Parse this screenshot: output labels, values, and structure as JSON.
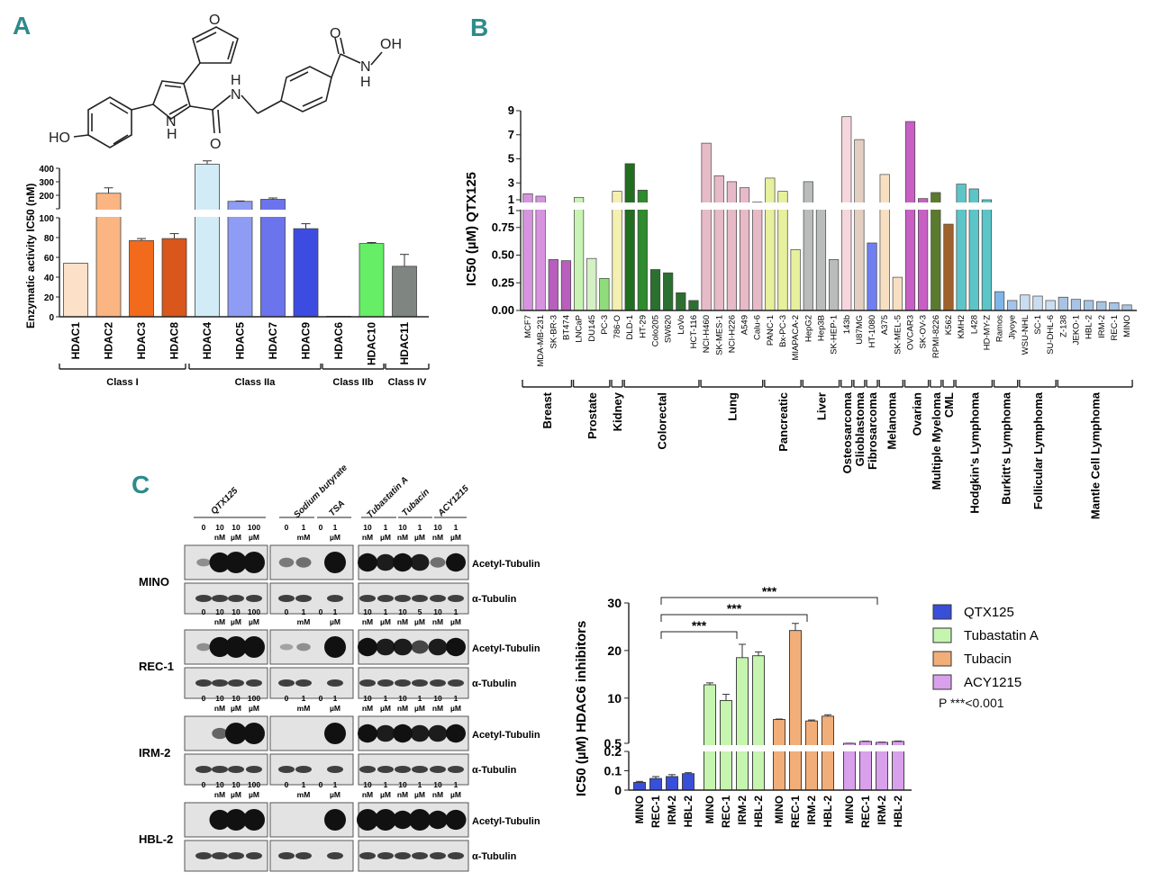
{
  "panels": {
    "A": {
      "letter": "A",
      "molecule": {
        "labels": [
          "HO",
          "H",
          "N",
          "O",
          "H",
          "N",
          "O",
          "N",
          "OH",
          "H",
          "O"
        ]
      },
      "y_axis_label": "Enzymatic activity  IC50 (nM)",
      "upper_ticks": [
        "400",
        "300",
        "200",
        "100"
      ],
      "lower_ticks": [
        "100",
        "80",
        "60",
        "40",
        "20",
        "0"
      ],
      "class_labels": [
        "Class I",
        "Class IIa",
        "Class IIb",
        "Class IV"
      ]
    },
    "B": {
      "letter": "B",
      "y_axis_label": "IC50 (µM)  QTX125",
      "upper_ticks": [
        "9",
        "7",
        "5",
        "3",
        "1"
      ],
      "lower_ticks": [
        "1",
        "0.75",
        "0.50",
        "0.25",
        "0.00"
      ],
      "groups": [
        "Breast",
        "Prostate",
        "Kidney",
        "Colorectal",
        "Lung",
        "Pancreatic",
        "Liver",
        "Osteosarcoma",
        "Glioblastoma",
        "Fibrosarcoma",
        "Melanoma",
        "Ovarian",
        "Multiple Myeloma",
        "CML",
        "Hodgkin's Lymphoma",
        "Burkitt's Lymphoma",
        "Follicular Lymphoma",
        "Mantle Cell Lymphoma"
      ]
    },
    "C": {
      "letter": "C",
      "treatment_headers": [
        "QTX125",
        "Sodium butyrate",
        "TSA",
        "Tubastatin A",
        "Tubacin",
        "ACY1215"
      ],
      "cell_lines": [
        "MINO",
        "REC-1",
        "IRM-2",
        "HBL-2"
      ],
      "row_labels": [
        "Acetyl-Tubulin",
        "α-Tubulin"
      ],
      "dose_rows": [
        {
          "numbers": [
            "0",
            "10",
            "10",
            "100",
            "0",
            "1",
            "0",
            "1",
            "10",
            "1",
            "10",
            "1",
            "10",
            "1"
          ],
          "units": [
            "nM",
            "µM",
            "µM",
            "mM",
            "µM",
            "nM",
            "µM",
            "nM",
            "µM",
            "nM",
            "µM"
          ]
        },
        {
          "numbers": [
            "0",
            "10",
            "10",
            "100",
            "0",
            "1",
            "0",
            "1",
            "10",
            "1",
            "10",
            "5",
            "10",
            "1"
          ],
          "units": [
            "nM",
            "µM",
            "µM",
            "mM",
            "µM",
            "nM",
            "µM",
            "nM",
            "µM",
            "nM",
            "µM"
          ]
        },
        {
          "numbers": [
            "0",
            "10",
            "10",
            "100",
            "0",
            "1",
            "0",
            "1",
            "10",
            "1",
            "10",
            "1",
            "10",
            "1"
          ],
          "units": [
            "nM",
            "µM",
            "µM",
            "mM",
            "µM",
            "nM",
            "µM",
            "nM",
            "µM",
            "nM",
            "µM"
          ]
        },
        {
          "numbers": [
            "0",
            "10",
            "10",
            "100",
            "0",
            "1",
            "0",
            "1",
            "10",
            "1",
            "10",
            "1",
            "10",
            "1"
          ],
          "units": [
            "nM",
            "µM",
            "µM",
            "mM",
            "µM",
            "nM",
            "µM",
            "nM",
            "µM",
            "nM",
            "µM"
          ]
        }
      ]
    },
    "D": {
      "y_axis_label": "IC50 (µM) HDAC6 inhibitors",
      "upper_ticks": [
        "30",
        "20",
        "10",
        "0.5"
      ],
      "lower_ticks": [
        "0.2",
        "0.1",
        "0"
      ],
      "significance": [
        "***",
        "***",
        "***"
      ],
      "p_note": "P ***<0.001"
    }
  },
  "chart_data": [
    {
      "id": "A",
      "type": "bar",
      "title": "",
      "xlabel": "",
      "ylabel": "Enzymatic activity  IC50 (nM)",
      "y_axis_break": {
        "lower_range": [
          0,
          100
        ],
        "upper_range": [
          100,
          400
        ]
      },
      "categories": [
        "HDAC1",
        "HDAC2",
        "HDAC3",
        "HDAC8",
        "HDAC4",
        "HDAC5",
        "HDAC7",
        "HDAC9",
        "HDAC6",
        "HDAC10",
        "HDAC11"
      ],
      "values": [
        54,
        215,
        77,
        79,
        430,
        155,
        170,
        89,
        0.5,
        74,
        51
      ],
      "errors": [
        0,
        40,
        2,
        5,
        25,
        3,
        10,
        5,
        0,
        1,
        12
      ],
      "colors": [
        "#fde0c8",
        "#fbb582",
        "#f26a1b",
        "#d9561d",
        "#d2ecf7",
        "#8e9cf3",
        "#6b74ec",
        "#3d4ce0",
        "#ffffff",
        "#66ee66",
        "#7f8682"
      ],
      "groups": [
        {
          "label": "Class I",
          "members": [
            "HDAC1",
            "HDAC2",
            "HDAC3",
            "HDAC8"
          ]
        },
        {
          "label": "Class IIa",
          "members": [
            "HDAC4",
            "HDAC5",
            "HDAC7",
            "HDAC9"
          ]
        },
        {
          "label": "Class IIb",
          "members": [
            "HDAC6",
            "HDAC10"
          ]
        },
        {
          "label": "Class IV",
          "members": [
            "HDAC11"
          ]
        }
      ]
    },
    {
      "id": "B",
      "type": "bar",
      "title": "",
      "ylabel": "IC50 (µM)  QTX125",
      "y_axis_break": {
        "lower_range": [
          0,
          1
        ],
        "upper_range": [
          1,
          9
        ]
      },
      "categories": [
        "MCF7",
        "MDA-MB-231",
        "SK-BR-3",
        "BT474",
        "LNCaP",
        "DU145",
        "PC-3",
        "786-O",
        "DLD-1",
        "HT-29",
        "Colo205",
        "SW620",
        "LoVo",
        "HCT-116",
        "NCI-H460",
        "SK-MES-1",
        "NCI-H226",
        "A549",
        "Calu-6",
        "PANC-1",
        "Bx-PC-3",
        "MIAPACA-2",
        "HepG2",
        "Hep3B",
        "SK-HEP-1",
        "143b",
        "U87MG",
        "HT-1080",
        "A375",
        "SK-MEL-5",
        "OVCAR3",
        "SK-OV-3",
        "RPMI-8226",
        "K562",
        "KMH2",
        "L428",
        "HD-MY-Z",
        "Ramos",
        "Jiyoye",
        "WSU-NHL",
        "SC-1",
        "SU-DHL-6",
        "Z-138",
        "JEKO-1",
        "HBL-2",
        "IRM-2",
        "REC-1",
        "MINO"
      ],
      "values": [
        2.1,
        1.9,
        0.46,
        0.45,
        1.8,
        0.47,
        0.29,
        2.3,
        4.6,
        2.4,
        0.37,
        0.34,
        0.16,
        0.09,
        6.3,
        3.6,
        3.1,
        2.6,
        1.4,
        3.4,
        2.3,
        0.55,
        3.1,
        0.95,
        0.46,
        8.5,
        6.6,
        0.61,
        3.7,
        0.3,
        8.1,
        1.7,
        2.2,
        0.78,
        2.9,
        2.5,
        1.0,
        0.17,
        0.09,
        0.14,
        0.13,
        0.09,
        0.12,
        0.1,
        0.09,
        0.08,
        0.07,
        0.05
      ],
      "colors": [
        "#d793e0",
        "#d793e0",
        "#b85fbd",
        "#b85fbd",
        "#c9f2b5",
        "#d5f0c4",
        "#8fdc7a",
        "#f4f0b0",
        "#1f6f1f",
        "#2e8b2e",
        "#2b7030",
        "#2b7030",
        "#2b7030",
        "#2b7030",
        "#e7bac8",
        "#e7bac8",
        "#e7bac8",
        "#e7bac8",
        "#e7bac8",
        "#e7f09c",
        "#e7f09c",
        "#e7f09c",
        "#b9bcbb",
        "#b9bcbb",
        "#b9bcbb",
        "#f6d6dd",
        "#e3cfc2",
        "#6f7ef0",
        "#f7e0c2",
        "#f7e0c2",
        "#c85fc5",
        "#c85fc5",
        "#5a7a2e",
        "#a0622b",
        "#5cc5c8",
        "#5cc5c8",
        "#5cc5c8",
        "#7fb6e8",
        "#a6c4e8",
        "#c9dcf0",
        "#c9dcf0",
        "#c9dcf0",
        "#a9c3e3",
        "#a9c3e3",
        "#a9c3e3",
        "#a9c3e3",
        "#a9c3e3",
        "#a9c3e3"
      ],
      "groups": [
        {
          "label": "Breast",
          "from": 0,
          "to": 3
        },
        {
          "label": "Prostate",
          "from": 4,
          "to": 6
        },
        {
          "label": "Kidney",
          "from": 7,
          "to": 7
        },
        {
          "label": "Colorectal",
          "from": 8,
          "to": 13
        },
        {
          "label": "Lung",
          "from": 14,
          "to": 18
        },
        {
          "label": "Pancreatic",
          "from": 19,
          "to": 21
        },
        {
          "label": "Liver",
          "from": 22,
          "to": 24
        },
        {
          "label": "Osteosarcoma",
          "from": 25,
          "to": 25
        },
        {
          "label": "Glioblastoma",
          "from": 26,
          "to": 26
        },
        {
          "label": "Fibrosarcoma",
          "from": 27,
          "to": 27
        },
        {
          "label": "Melanoma",
          "from": 28,
          "to": 29
        },
        {
          "label": "Ovarian",
          "from": 30,
          "to": 31
        },
        {
          "label": "Multiple Myeloma",
          "from": 32,
          "to": 32
        },
        {
          "label": "CML",
          "from": 33,
          "to": 33
        },
        {
          "label": "Hodgkin's Lymphoma",
          "from": 34,
          "to": 36
        },
        {
          "label": "Burkitt's Lymphoma",
          "from": 37,
          "to": 38
        },
        {
          "label": "Follicular Lymphoma",
          "from": 39,
          "to": 41
        },
        {
          "label": "Mantle Cell Lymphoma",
          "from": 42,
          "to": 47
        }
      ]
    },
    {
      "id": "D",
      "type": "bar",
      "title": "",
      "ylabel": "IC50 (µM) HDAC6 inhibitors",
      "y_axis_break": {
        "lower_range": [
          0,
          0.2
        ],
        "upper_range": [
          0.5,
          30
        ]
      },
      "categories": [
        "MINO",
        "REC-1",
        "IRM-2",
        "HBL-2"
      ],
      "series": [
        {
          "name": "QTX125",
          "color": "#3a4fd8",
          "values": [
            0.04,
            0.06,
            0.07,
            0.085
          ],
          "errors": [
            0.005,
            0.01,
            0.01,
            0.005
          ]
        },
        {
          "name": "Tubastatin A",
          "color": "#c6f5b0",
          "values": [
            12.8,
            9.5,
            18.5,
            18.9
          ],
          "errors": [
            0.4,
            1.3,
            2.8,
            0.8
          ]
        },
        {
          "name": "Tubacin",
          "color": "#f2ae78",
          "values": [
            5.5,
            24.2,
            5.2,
            6.2
          ],
          "errors": [
            0.1,
            1.5,
            0.2,
            0.3
          ]
        },
        {
          "name": "ACY1215",
          "color": "#d9a0ec",
          "values": [
            0.5,
            0.9,
            0.7,
            0.9
          ],
          "errors": [
            0.02,
            0.05,
            0.05,
            0.08
          ]
        }
      ],
      "comparisons": [
        {
          "from": "QTX125 REC-1",
          "to": "Tubastatin A IRM-2",
          "label": "***"
        },
        {
          "from": "QTX125 REC-1",
          "to": "Tubacin IRM-2",
          "label": "***"
        },
        {
          "from": "QTX125 REC-1",
          "to": "ACY1215 REC-1",
          "label": "***"
        }
      ],
      "legend_position": "right"
    }
  ]
}
